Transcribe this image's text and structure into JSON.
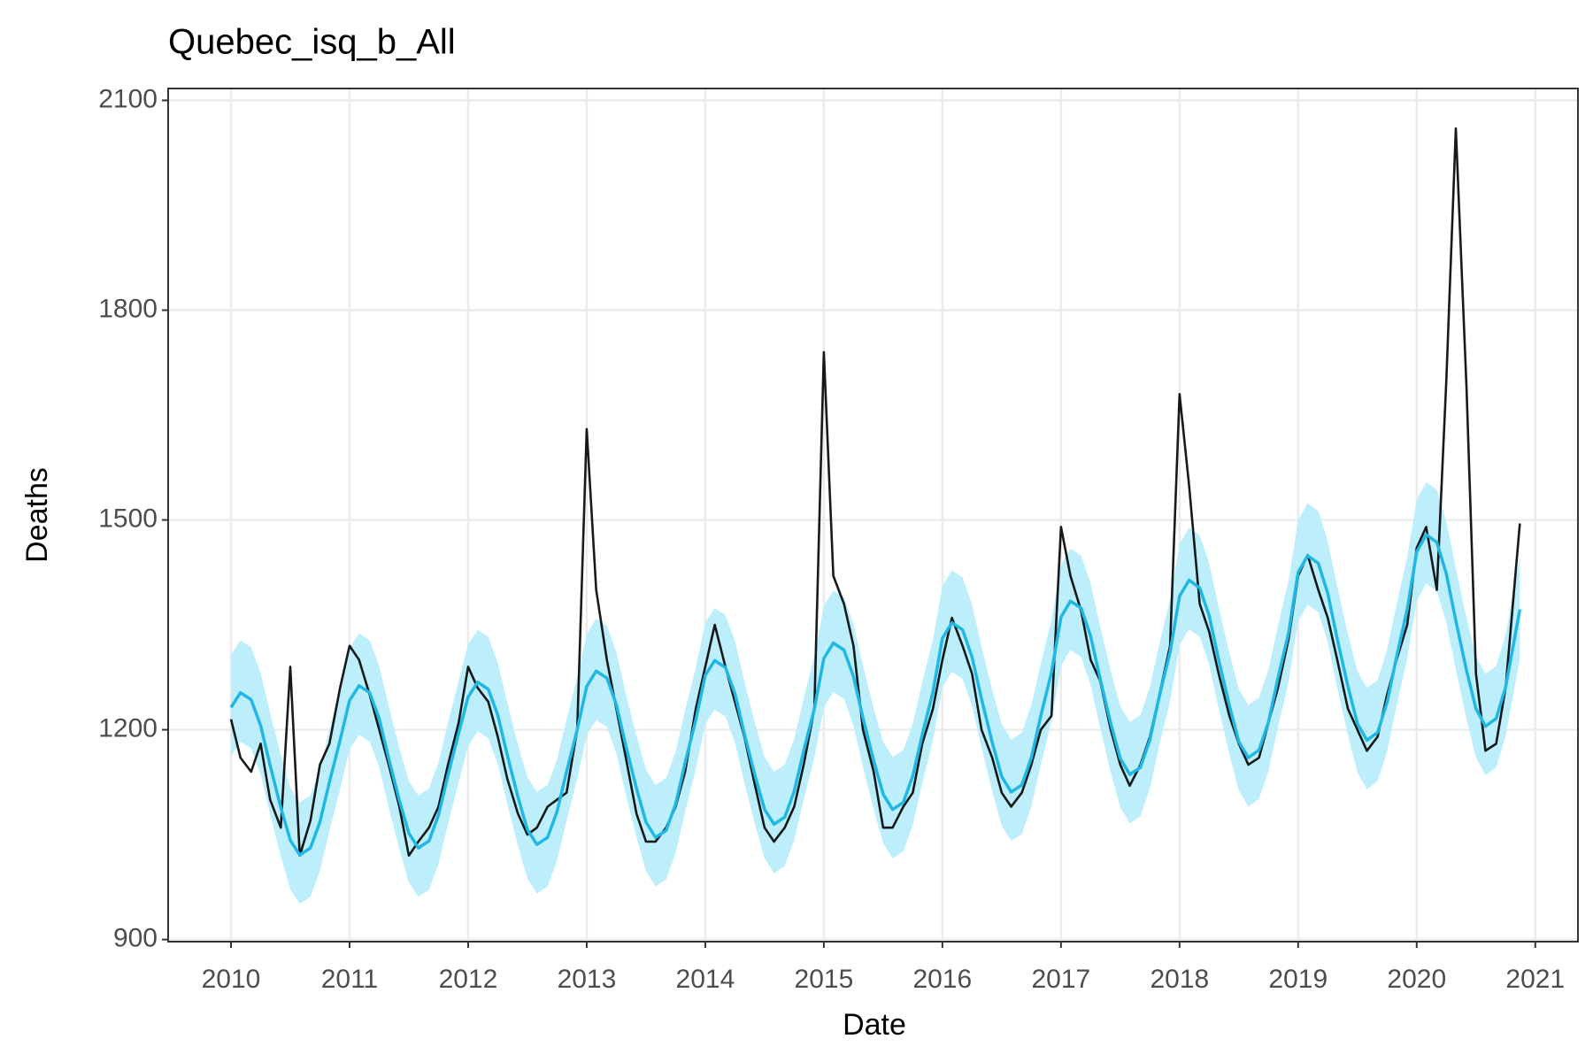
{
  "chart_data": {
    "type": "line",
    "title": "Quebec_isq_b_All",
    "x_label": "Date",
    "y_label": "Deaths",
    "xlim": [
      2009.47,
      2021.36
    ],
    "ylim": [
      897,
      2117
    ],
    "xticks": [
      2010,
      2011,
      2012,
      2013,
      2014,
      2015,
      2016,
      2017,
      2018,
      2019,
      2020,
      2021
    ],
    "yticks": [
      900,
      1200,
      1500,
      1800,
      2100
    ],
    "grid": true,
    "x": [
      2010,
      2010.08,
      2010.17,
      2010.25,
      2010.33,
      2010.42,
      2010.5,
      2010.58,
      2010.67,
      2010.75,
      2010.83,
      2010.92,
      2011,
      2011.08,
      2011.17,
      2011.25,
      2011.33,
      2011.42,
      2011.5,
      2011.58,
      2011.67,
      2011.75,
      2011.83,
      2011.92,
      2012,
      2012.08,
      2012.17,
      2012.25,
      2012.33,
      2012.42,
      2012.5,
      2012.58,
      2012.67,
      2012.75,
      2012.83,
      2012.92,
      2013,
      2013.08,
      2013.17,
      2013.25,
      2013.33,
      2013.42,
      2013.5,
      2013.58,
      2013.67,
      2013.75,
      2013.83,
      2013.92,
      2014,
      2014.08,
      2014.17,
      2014.25,
      2014.33,
      2014.42,
      2014.5,
      2014.58,
      2014.67,
      2014.75,
      2014.83,
      2014.92,
      2015,
      2015.08,
      2015.17,
      2015.25,
      2015.33,
      2015.42,
      2015.5,
      2015.58,
      2015.67,
      2015.75,
      2015.83,
      2015.92,
      2016,
      2016.08,
      2016.17,
      2016.25,
      2016.33,
      2016.42,
      2016.5,
      2016.58,
      2016.67,
      2016.75,
      2016.83,
      2016.92,
      2017,
      2017.08,
      2017.17,
      2017.25,
      2017.33,
      2017.42,
      2017.5,
      2017.58,
      2017.67,
      2017.75,
      2017.83,
      2017.92,
      2018,
      2018.08,
      2018.17,
      2018.25,
      2018.33,
      2018.42,
      2018.5,
      2018.58,
      2018.67,
      2018.75,
      2018.83,
      2018.92,
      2019,
      2019.08,
      2019.17,
      2019.25,
      2019.33,
      2019.42,
      2019.5,
      2019.58,
      2019.67,
      2019.75,
      2019.83,
      2019.92,
      2020,
      2020.08,
      2020.17,
      2020.25,
      2020.33,
      2020.42,
      2020.5,
      2020.58,
      2020.67,
      2020.75,
      2020.87
    ],
    "band": {
      "color": "#bdeefb",
      "lower": [
        1162,
        1183,
        1173,
        1136,
        1079,
        1019,
        972,
        951,
        961,
        998,
        1055,
        1115,
        1172,
        1193,
        1183,
        1146,
        1089,
        1029,
        982,
        961,
        971,
        1008,
        1065,
        1125,
        1177,
        1198,
        1188,
        1151,
        1094,
        1034,
        987,
        966,
        976,
        1013,
        1070,
        1130,
        1192,
        1214,
        1204,
        1166,
        1107,
        1046,
        998,
        976,
        986,
        1024,
        1083,
        1144,
        1208,
        1229,
        1219,
        1182,
        1124,
        1064,
        1016,
        995,
        1005,
        1042,
        1100,
        1160,
        1232,
        1254,
        1244,
        1206,
        1147,
        1086,
        1038,
        1016,
        1026,
        1064,
        1123,
        1184,
        1261,
        1283,
        1273,
        1234,
        1174,
        1112,
        1063,
        1041,
        1051,
        1090,
        1150,
        1212,
        1291,
        1314,
        1304,
        1264,
        1203,
        1139,
        1089,
        1066,
        1076,
        1116,
        1178,
        1241,
        1321,
        1344,
        1333,
        1293,
        1230,
        1165,
        1113,
        1090,
        1101,
        1141,
        1204,
        1269,
        1355,
        1379,
        1368,
        1325,
        1260,
        1192,
        1139,
        1115,
        1126,
        1169,
        1234,
        1302,
        1384,
        1409,
        1398,
        1353,
        1286,
        1215,
        1160,
        1135,
        1146,
        1191,
        1302
      ],
      "upper": [
        1307,
        1328,
        1318,
        1281,
        1224,
        1164,
        1117,
        1096,
        1106,
        1143,
        1200,
        1260,
        1317,
        1338,
        1328,
        1291,
        1234,
        1174,
        1127,
        1106,
        1116,
        1153,
        1210,
        1270,
        1322,
        1343,
        1333,
        1296,
        1239,
        1179,
        1132,
        1111,
        1121,
        1158,
        1215,
        1275,
        1337,
        1359,
        1349,
        1311,
        1252,
        1191,
        1143,
        1121,
        1131,
        1169,
        1228,
        1289,
        1353,
        1374,
        1364,
        1327,
        1269,
        1209,
        1161,
        1140,
        1150,
        1187,
        1245,
        1305,
        1377,
        1399,
        1389,
        1351,
        1292,
        1231,
        1183,
        1161,
        1171,
        1209,
        1268,
        1329,
        1406,
        1428,
        1418,
        1379,
        1319,
        1257,
        1208,
        1186,
        1196,
        1235,
        1295,
        1357,
        1436,
        1459,
        1449,
        1409,
        1348,
        1284,
        1234,
        1211,
        1221,
        1261,
        1323,
        1386,
        1466,
        1489,
        1478,
        1438,
        1375,
        1310,
        1258,
        1235,
        1246,
        1286,
        1349,
        1414,
        1500,
        1524,
        1513,
        1470,
        1405,
        1337,
        1284,
        1260,
        1271,
        1314,
        1379,
        1447,
        1529,
        1554,
        1543,
        1498,
        1431,
        1360,
        1305,
        1280,
        1291,
        1336,
        1447
      ]
    },
    "series": [
      {
        "color": "#000000",
        "values": [
          1215,
          1160,
          1140,
          1180,
          1100,
          1060,
          1290,
          1020,
          1070,
          1150,
          1180,
          1260,
          1320,
          1300,
          1250,
          1200,
          1150,
          1090,
          1020,
          1040,
          1060,
          1090,
          1150,
          1210,
          1290,
          1260,
          1240,
          1190,
          1130,
          1080,
          1050,
          1060,
          1090,
          1100,
          1110,
          1200,
          1630,
          1400,
          1300,
          1230,
          1160,
          1080,
          1040,
          1040,
          1060,
          1090,
          1140,
          1230,
          1290,
          1350,
          1290,
          1240,
          1190,
          1120,
          1060,
          1040,
          1060,
          1090,
          1150,
          1230,
          1740,
          1420,
          1380,
          1320,
          1200,
          1140,
          1060,
          1060,
          1090,
          1110,
          1180,
          1230,
          1300,
          1360,
          1320,
          1280,
          1200,
          1160,
          1110,
          1090,
          1110,
          1150,
          1200,
          1220,
          1490,
          1420,
          1370,
          1300,
          1270,
          1200,
          1150,
          1120,
          1150,
          1190,
          1250,
          1320,
          1680,
          1550,
          1380,
          1340,
          1280,
          1220,
          1180,
          1150,
          1160,
          1210,
          1260,
          1330,
          1420,
          1450,
          1400,
          1360,
          1300,
          1230,
          1200,
          1170,
          1190,
          1250,
          1300,
          1350,
          1460,
          1490,
          1400,
          1700,
          2060,
          1690,
          1280,
          1170,
          1180,
          1260,
          1495
        ]
      },
      {
        "color": "#1fb8e4",
        "values": [
          1232,
          1253,
          1243,
          1206,
          1149,
          1089,
          1042,
          1021,
          1031,
          1068,
          1125,
          1185,
          1242,
          1263,
          1253,
          1216,
          1159,
          1099,
          1052,
          1031,
          1041,
          1078,
          1135,
          1195,
          1247,
          1268,
          1258,
          1221,
          1164,
          1104,
          1057,
          1036,
          1046,
          1083,
          1140,
          1200,
          1262,
          1284,
          1274,
          1236,
          1177,
          1116,
          1068,
          1046,
          1056,
          1094,
          1153,
          1214,
          1278,
          1299,
          1289,
          1252,
          1194,
          1134,
          1086,
          1065,
          1075,
          1112,
          1170,
          1230,
          1302,
          1324,
          1314,
          1276,
          1217,
          1156,
          1108,
          1086,
          1096,
          1134,
          1193,
          1254,
          1331,
          1353,
          1343,
          1304,
          1244,
          1182,
          1133,
          1111,
          1121,
          1160,
          1220,
          1282,
          1361,
          1384,
          1374,
          1334,
          1273,
          1209,
          1159,
          1136,
          1146,
          1186,
          1248,
          1311,
          1391,
          1414,
          1403,
          1363,
          1300,
          1235,
          1183,
          1160,
          1171,
          1211,
          1274,
          1339,
          1425,
          1449,
          1438,
          1395,
          1330,
          1262,
          1209,
          1185,
          1196,
          1239,
          1304,
          1372,
          1454,
          1479,
          1468,
          1423,
          1356,
          1285,
          1230,
          1205,
          1216,
          1261,
          1372
        ]
      }
    ]
  }
}
